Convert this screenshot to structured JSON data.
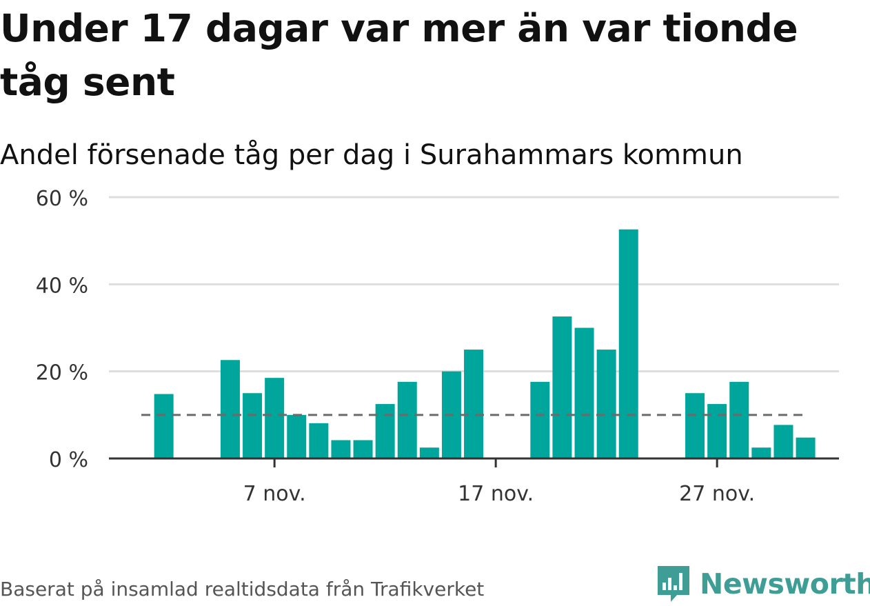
{
  "title": "Under 17 dagar var mer än var tionde tåg sent",
  "subtitle": "Andel försenade tåg per dag i Surahammars kommun",
  "footer": {
    "source": "Baserat på insamlad realtidsdata från Trafikverket",
    "brand": "Newsworthy"
  },
  "colors": {
    "bar": "#00a69c",
    "reference_line": "#6b6b6b",
    "grid": "#dddddd",
    "axis": "#333333",
    "brand": "#3e9d94"
  },
  "chart_data": {
    "type": "bar",
    "categories": [
      "1 nov.",
      "2 nov.",
      "3 nov.",
      "4 nov.",
      "5 nov.",
      "6 nov.",
      "7 nov.",
      "8 nov.",
      "9 nov.",
      "10 nov.",
      "11 nov.",
      "12 nov.",
      "13 nov.",
      "14 nov.",
      "15 nov.",
      "16 nov.",
      "17 nov.",
      "18 nov.",
      "19 nov.",
      "20 nov.",
      "21 nov.",
      "22 nov.",
      "23 nov.",
      "24 nov.",
      "25 nov.",
      "26 nov.",
      "27 nov.",
      "28 nov.",
      "29 nov.",
      "30 nov.",
      "1 dec."
    ],
    "values": [
      null,
      14.8,
      null,
      null,
      22.6,
      15.0,
      18.5,
      10.0,
      8.1,
      4.2,
      4.2,
      12.5,
      17.6,
      2.5,
      20.0,
      25.0,
      null,
      null,
      17.6,
      32.6,
      30.0,
      25.0,
      52.6,
      null,
      null,
      15.0,
      12.5,
      17.6,
      2.5,
      7.7,
      4.8
    ],
    "reference_line": 10,
    "ylim": [
      0,
      60
    ],
    "yticks": [
      0,
      20,
      40,
      60
    ],
    "ytick_labels": [
      "0 %",
      "20 %",
      "40 %",
      "60 %"
    ],
    "xticks": [
      "7 nov.",
      "17 nov.",
      "27 nov."
    ],
    "grid": true,
    "xlabel": "",
    "ylabel": ""
  }
}
